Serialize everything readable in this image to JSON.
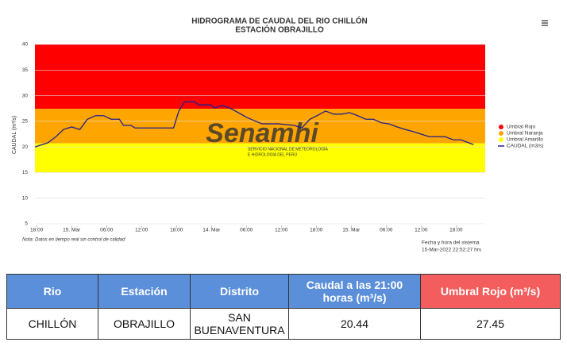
{
  "chart_data": {
    "type": "line",
    "title": "HIDROGRAMA DE CAUDAL DEL RIO CHILLÓN",
    "subtitle": "ESTACIÓN OBRAJILLO",
    "y_label": "CAUDAL (m³/s)",
    "watermark": "Senamhi",
    "watermark_sub": [
      "SERVICIO NACIONAL DE METEOROLOGÍA",
      "E HIDROLOGÍA DEL PERÚ"
    ],
    "note": "Nota: Datos en tiempo real sin control de calidad",
    "timestamp_label": "Fecha y hora del sistema",
    "timestamp": "15-Mar-2022 22:52:27 hrs",
    "xlim": [
      -0.3,
      77
    ],
    "xticks": [
      {
        "value": 0,
        "label": "18:00"
      },
      {
        "value": 6,
        "label": "15. Mar"
      },
      {
        "value": 12,
        "label": "06:00"
      },
      {
        "value": 18,
        "label": "12:00"
      },
      {
        "value": 24,
        "label": "18:00"
      },
      {
        "value": 30,
        "label": "14. Mar"
      },
      {
        "value": 36,
        "label": "06:00"
      },
      {
        "value": 42,
        "label": "12:00"
      },
      {
        "value": 48,
        "label": "18:00"
      },
      {
        "value": 54,
        "label": "15. Mar"
      },
      {
        "value": 60,
        "label": "06:00"
      },
      {
        "value": 66,
        "label": "12:00"
      },
      {
        "value": 72,
        "label": "18:00"
      }
    ],
    "ylim": [
      5,
      40
    ],
    "yticks": [
      5,
      10,
      15,
      20,
      25,
      30,
      35,
      40
    ],
    "grid": true,
    "legend": "right",
    "bands": [
      {
        "name": "Umbral Rojo",
        "color": "#ff0000",
        "from": 27.45,
        "to": 40
      },
      {
        "name": "Umbral Naranja",
        "color": "#ffa500",
        "from": 20.7,
        "to": 27.45
      },
      {
        "name": "Umbral Amarillo",
        "color": "#ffff00",
        "from": 15,
        "to": 20.7
      }
    ],
    "x": [
      -0.3,
      1.9,
      3.3,
      4.6,
      6.0,
      7.4,
      8.7,
      10.1,
      11.5,
      12.8,
      14.2,
      14.9,
      16.2,
      16.9,
      18.3,
      21.0,
      23.5,
      24.4,
      25.4,
      27.1,
      27.8,
      29.9,
      30.5,
      31.9,
      33.3,
      34.6,
      36.0,
      37.4,
      38.7,
      41.5,
      44.2,
      45.5,
      46.9,
      48.3,
      49.6,
      51.0,
      52.4,
      53.7,
      55.1,
      56.5,
      57.8,
      59.2,
      60.5,
      61.9,
      63.3,
      64.6,
      66.0,
      67.4,
      70.1,
      71.5,
      72.8,
      74.2,
      75.0
    ],
    "series": [
      {
        "name": "CAUDAL (m3/s)",
        "color": "#1f1f8f",
        "values": [
          20.0,
          20.8,
          22.0,
          23.4,
          23.9,
          23.4,
          25.4,
          26.1,
          26.1,
          25.4,
          25.4,
          24.2,
          24.2,
          23.7,
          23.7,
          23.7,
          23.7,
          27.0,
          28.8,
          28.8,
          28.2,
          28.2,
          27.6,
          28.1,
          27.5,
          26.7,
          25.8,
          25.1,
          24.5,
          24.5,
          24.2,
          23.7,
          25.4,
          26.2,
          27.0,
          26.4,
          26.4,
          26.7,
          26.1,
          25.4,
          25.4,
          24.7,
          24.5,
          23.9,
          23.4,
          23.0,
          22.5,
          22.0,
          22.0,
          21.4,
          21.4,
          20.8,
          20.44
        ]
      }
    ]
  },
  "table": {
    "headers": [
      "Rio",
      "Estación",
      "Distrito",
      "Caudal a las 21:00 horas (m³/s)",
      "Umbral Rojo (m³/s)"
    ],
    "rows": [
      [
        "CHILLÓN",
        "OBRAJILLO",
        "SAN BUENAVENTURA",
        "20.44",
        "27.45"
      ]
    ]
  }
}
